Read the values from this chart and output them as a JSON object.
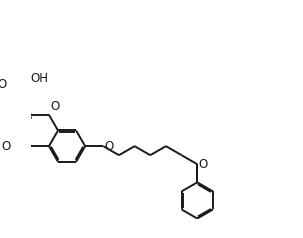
{
  "background_color": "#ffffff",
  "line_color": "#1a1a1a",
  "line_width": 1.4,
  "figsize": [
    3.03,
    2.38
  ],
  "dpi": 100,
  "xlim": [
    -1,
    14
  ],
  "ylim": [
    -4,
    7
  ]
}
